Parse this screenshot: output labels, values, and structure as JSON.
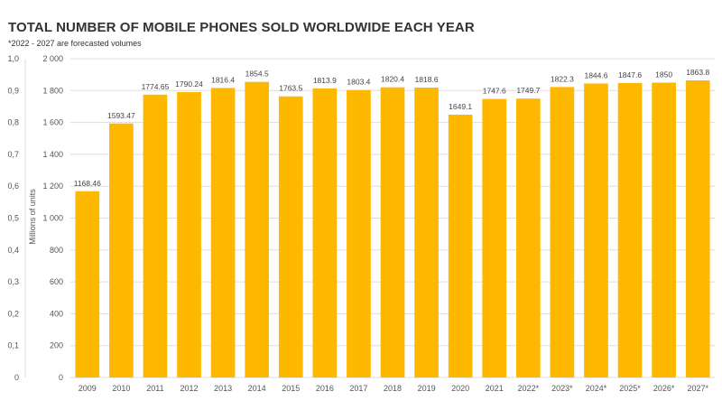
{
  "chart_data": {
    "type": "bar",
    "title": "TOTAL NUMBER OF MOBILE PHONES SOLD WORLDWIDE EACH YEAR",
    "subtitle": "*2022 - 2027 are forecasted volumes",
    "ylabel": "Millions of units",
    "ylim": [
      0,
      2000
    ],
    "secondary_ylim": [
      0,
      1.0
    ],
    "y_ticks": [
      "0",
      "200",
      "400",
      "600",
      "800",
      "1 000",
      "1 200",
      "1 400",
      "1 600",
      "1 800",
      "2 000"
    ],
    "secondary_y_ticks": [
      "0",
      "0,1",
      "0,2",
      "0,3",
      "0,4",
      "0,5",
      "0,6",
      "0,7",
      "0,8",
      "0,9",
      "1,0"
    ],
    "categories": [
      "2009",
      "2010",
      "2011",
      "2012",
      "2013",
      "2014",
      "2015",
      "2016",
      "2017",
      "2018",
      "2019",
      "2020",
      "2021",
      "2022*",
      "2023*",
      "2024*",
      "2025*",
      "2026*",
      "2027*"
    ],
    "values": [
      1168.46,
      1593.47,
      1774.65,
      1790.24,
      1816.4,
      1854.5,
      1763.5,
      1813.9,
      1803.4,
      1820.4,
      1818.6,
      1649.1,
      1747.6,
      1749.7,
      1822.3,
      1844.6,
      1847.6,
      1850,
      1863.8
    ],
    "data_labels": [
      "1168.46",
      "1593.47",
      "1774.65",
      "1790.24",
      "1816.4",
      "1854.5",
      "1763.5",
      "1813.9",
      "1803.4",
      "1820.4",
      "1818.6",
      "1649.1",
      "1747.6",
      "1749.7",
      "1822.3",
      "1844.6",
      "1847.6",
      "1850",
      "1863.8"
    ],
    "bar_color": "#FFB800",
    "grid": true,
    "legend": "none"
  }
}
